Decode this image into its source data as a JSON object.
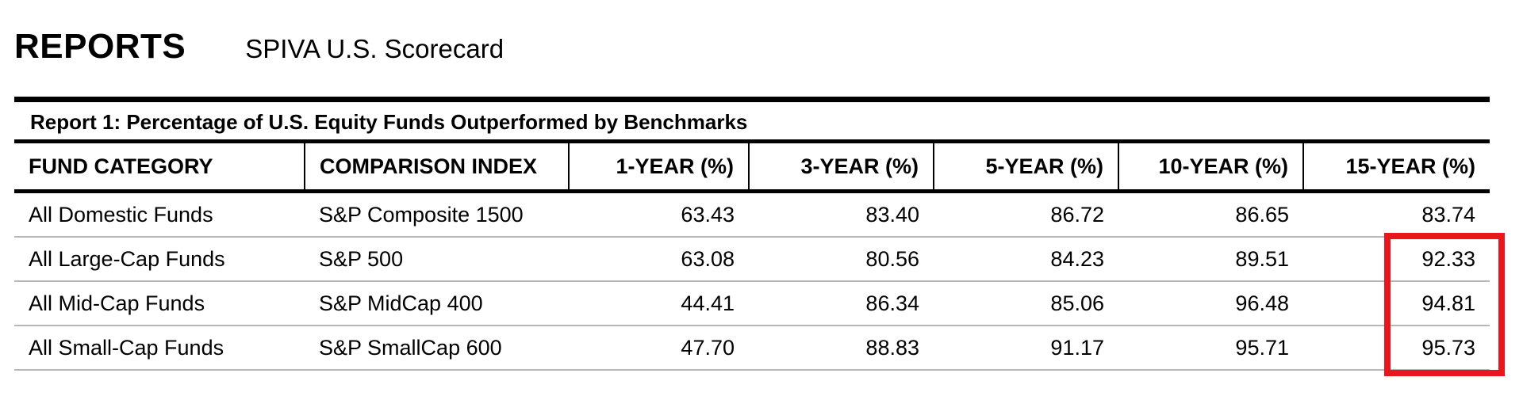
{
  "header": {
    "title": "REPORTS",
    "subtitle": "SPIVA U.S. Scorecard"
  },
  "report": {
    "caption": "Report 1: Percentage of U.S. Equity Funds Outperformed by Benchmarks",
    "columns": [
      "FUND CATEGORY",
      "COMPARISON INDEX",
      "1-YEAR (%)",
      "3-YEAR (%)",
      "5-YEAR (%)",
      "10-YEAR (%)",
      "15-YEAR (%)"
    ],
    "rows": [
      [
        "All Domestic Funds",
        "S&P Composite 1500",
        "63.43",
        "83.40",
        "86.72",
        "86.65",
        "83.74"
      ],
      [
        "All Large-Cap Funds",
        "S&P 500",
        "63.08",
        "80.56",
        "84.23",
        "89.51",
        "92.33"
      ],
      [
        "All Mid-Cap Funds",
        "S&P MidCap 400",
        "44.41",
        "86.34",
        "85.06",
        "96.48",
        "94.81"
      ],
      [
        "All Small-Cap Funds",
        "S&P SmallCap 600",
        "47.70",
        "88.83",
        "91.17",
        "95.71",
        "95.73"
      ]
    ]
  },
  "annotation": {
    "highlight_color": "#e8171d"
  }
}
